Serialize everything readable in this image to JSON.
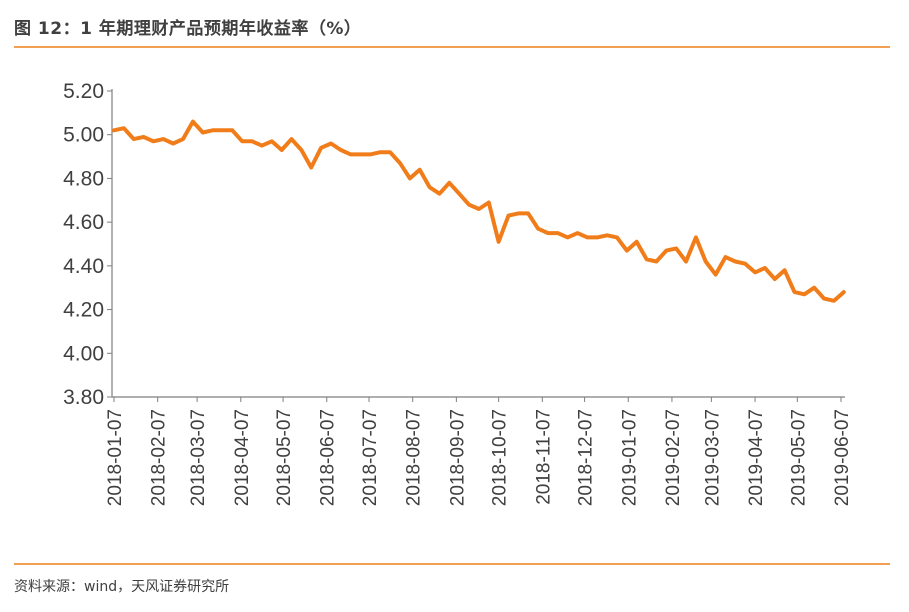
{
  "header": {
    "title": "图 12：1 年期理财产品预期年收益率（%）"
  },
  "footer": {
    "source": "资料来源：wind，天风证券研究所"
  },
  "colors": {
    "accent_rule": "#F0A050",
    "line": "#F07D1A",
    "axis": "#7F7F7F"
  },
  "chart_data": {
    "type": "line",
    "title": "1 年期理财产品预期年收益率（%）",
    "xlabel": "",
    "ylabel": "",
    "ylim": [
      3.8,
      5.2
    ],
    "y_ticks": [
      "3.80",
      "4.00",
      "4.20",
      "4.40",
      "4.60",
      "4.80",
      "5.00",
      "5.20"
    ],
    "x_ticks": [
      "2018-01-07",
      "2018-02-07",
      "2018-03-07",
      "2018-04-07",
      "2018-05-07",
      "2018-06-07",
      "2018-07-07",
      "2018-08-07",
      "2018-09-07",
      "2018-10-07",
      "2018-11-07",
      "2018-12-07",
      "2019-01-07",
      "2019-02-07",
      "2019-03-07",
      "2019-04-07",
      "2019-05-07",
      "2019-06-07"
    ],
    "grid": false,
    "legend": "none",
    "series": [
      {
        "name": "",
        "x": [
          "2018-01-07",
          "2018-01-14",
          "2018-01-21",
          "2018-01-28",
          "2018-02-04",
          "2018-02-11",
          "2018-02-18",
          "2018-02-25",
          "2018-03-04",
          "2018-03-11",
          "2018-03-18",
          "2018-03-25",
          "2018-04-01",
          "2018-04-08",
          "2018-04-15",
          "2018-04-22",
          "2018-04-29",
          "2018-05-06",
          "2018-05-13",
          "2018-05-20",
          "2018-05-27",
          "2018-06-03",
          "2018-06-10",
          "2018-06-17",
          "2018-06-24",
          "2018-07-01",
          "2018-07-08",
          "2018-07-15",
          "2018-07-22",
          "2018-07-29",
          "2018-08-05",
          "2018-08-12",
          "2018-08-19",
          "2018-08-26",
          "2018-09-02",
          "2018-09-09",
          "2018-09-16",
          "2018-09-23",
          "2018-09-30",
          "2018-10-07",
          "2018-10-14",
          "2018-10-21",
          "2018-10-28",
          "2018-11-04",
          "2018-11-11",
          "2018-11-18",
          "2018-11-25",
          "2018-12-02",
          "2018-12-09",
          "2018-12-16",
          "2018-12-23",
          "2018-12-30",
          "2019-01-06",
          "2019-01-13",
          "2019-01-20",
          "2019-01-27",
          "2019-02-03",
          "2019-02-10",
          "2019-02-17",
          "2019-02-24",
          "2019-03-03",
          "2019-03-10",
          "2019-03-17",
          "2019-03-24",
          "2019-03-31",
          "2019-04-07",
          "2019-04-14",
          "2019-04-21",
          "2019-04-28",
          "2019-05-05",
          "2019-05-12",
          "2019-05-19",
          "2019-05-26",
          "2019-06-02",
          "2019-06-09"
        ],
        "values": [
          5.02,
          5.03,
          4.98,
          4.99,
          4.97,
          4.98,
          4.96,
          4.98,
          5.06,
          5.01,
          5.02,
          5.02,
          5.02,
          4.97,
          4.97,
          4.95,
          4.97,
          4.93,
          4.98,
          4.93,
          4.85,
          4.94,
          4.96,
          4.93,
          4.91,
          4.91,
          4.91,
          4.92,
          4.92,
          4.87,
          4.8,
          4.84,
          4.76,
          4.73,
          4.78,
          4.73,
          4.68,
          4.66,
          4.69,
          4.51,
          4.63,
          4.64,
          4.64,
          4.57,
          4.55,
          4.55,
          4.53,
          4.55,
          4.53,
          4.53,
          4.54,
          4.53,
          4.47,
          4.51,
          4.43,
          4.42,
          4.47,
          4.48,
          4.42,
          4.53,
          4.42,
          4.36,
          4.44,
          4.42,
          4.41,
          4.37,
          4.39,
          4.34,
          4.38,
          4.28,
          4.27,
          4.3,
          4.25,
          4.24,
          4.28
        ]
      }
    ]
  }
}
